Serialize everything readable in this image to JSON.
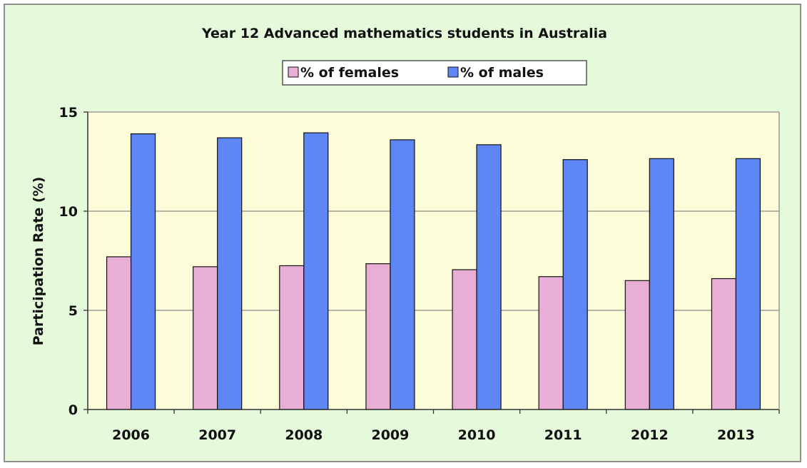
{
  "chart_data": {
    "type": "bar",
    "title": "Year 12 Advanced mathematics students in Australia",
    "xlabel": "",
    "ylabel": "Participation Rate (%)",
    "categories": [
      "2006",
      "2007",
      "2008",
      "2009",
      "2010",
      "2011",
      "2012",
      "2013"
    ],
    "series": [
      {
        "name": "% of females",
        "color": "#e9aed6",
        "values": [
          7.7,
          7.2,
          7.25,
          7.35,
          7.05,
          6.7,
          6.5,
          6.6
        ]
      },
      {
        "name": "% of males",
        "color": "#5f86f5",
        "values": [
          13.9,
          13.7,
          13.95,
          13.6,
          13.35,
          12.6,
          12.65,
          12.65
        ]
      }
    ],
    "ylim": [
      0,
      15
    ],
    "yticks": [
      "0",
      "5",
      "10",
      "15"
    ],
    "grid": true,
    "legend_position": "top",
    "plot_background": "#fdfdd9",
    "frame_background": "#e4fadb"
  }
}
